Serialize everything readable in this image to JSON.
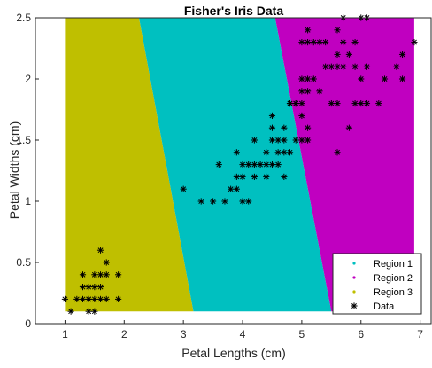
{
  "chart_data": {
    "type": "scatter",
    "title": "Fisher's Iris Data",
    "xlabel": "Petal Lengths (cm)",
    "ylabel": "Petal Widths (cm)",
    "xlim": [
      0.5,
      7.2
    ],
    "ylim": [
      0,
      2.5
    ],
    "xticks": [
      1,
      2,
      3,
      4,
      5,
      6,
      7
    ],
    "xtick_labels": [
      "1",
      "2",
      "3",
      "4",
      "5",
      "6",
      "7"
    ],
    "yticks": [
      0,
      0.5,
      1,
      1.5,
      2,
      2.5
    ],
    "ytick_labels": [
      "0",
      "0.5",
      "1",
      "1.5",
      "2",
      "2.5"
    ],
    "grid": false,
    "legend_position": "bottom-right",
    "legend": [
      {
        "label": "Region 1",
        "color": "#00c0c0",
        "marker": "dot"
      },
      {
        "label": "Region 2",
        "color": "#c000c0",
        "marker": "dot"
      },
      {
        "label": "Region 3",
        "color": "#bfbf00",
        "marker": "dot"
      },
      {
        "label": "Data",
        "color": "#000000",
        "marker": "asterisk"
      }
    ],
    "regions": [
      {
        "name": "Region 3",
        "color": "#bfbf00",
        "polygon": [
          [
            1,
            0.1
          ],
          [
            1,
            2.5
          ],
          [
            2.25,
            2.5
          ],
          [
            3.17,
            0.1
          ]
        ]
      },
      {
        "name": "Region 1",
        "color": "#00c0c0",
        "polygon": [
          [
            2.25,
            2.5
          ],
          [
            4.55,
            2.5
          ],
          [
            5.5,
            0.1
          ],
          [
            3.17,
            0.1
          ]
        ]
      },
      {
        "name": "Region 2",
        "color": "#c000c0",
        "polygon": [
          [
            4.55,
            2.5
          ],
          [
            6.9,
            2.5
          ],
          [
            6.9,
            0.1
          ],
          [
            5.5,
            0.1
          ]
        ]
      }
    ],
    "series": [
      {
        "name": "Data",
        "points": [
          [
            1.0,
            0.2
          ],
          [
            1.1,
            0.1
          ],
          [
            1.2,
            0.2
          ],
          [
            1.3,
            0.2
          ],
          [
            1.3,
            0.3
          ],
          [
            1.3,
            0.4
          ],
          [
            1.4,
            0.2
          ],
          [
            1.4,
            0.3
          ],
          [
            1.4,
            0.1
          ],
          [
            1.5,
            0.2
          ],
          [
            1.5,
            0.1
          ],
          [
            1.5,
            0.4
          ],
          [
            1.4,
            0.2
          ],
          [
            1.5,
            0.3
          ],
          [
            1.6,
            0.2
          ],
          [
            1.6,
            0.4
          ],
          [
            1.6,
            0.6
          ],
          [
            1.7,
            0.2
          ],
          [
            1.7,
            0.4
          ],
          [
            1.7,
            0.5
          ],
          [
            1.9,
            0.2
          ],
          [
            1.9,
            0.4
          ],
          [
            1.6,
            0.3
          ],
          [
            3.0,
            1.1
          ],
          [
            3.3,
            1.0
          ],
          [
            3.5,
            1.0
          ],
          [
            3.6,
            1.3
          ],
          [
            3.7,
            1.0
          ],
          [
            3.8,
            1.1
          ],
          [
            3.9,
            1.1
          ],
          [
            3.9,
            1.2
          ],
          [
            3.9,
            1.4
          ],
          [
            4.0,
            1.0
          ],
          [
            4.0,
            1.2
          ],
          [
            4.0,
            1.3
          ],
          [
            4.1,
            1.0
          ],
          [
            4.1,
            1.3
          ],
          [
            4.2,
            1.2
          ],
          [
            4.2,
            1.3
          ],
          [
            4.2,
            1.5
          ],
          [
            4.3,
            1.3
          ],
          [
            4.4,
            1.2
          ],
          [
            4.4,
            1.3
          ],
          [
            4.4,
            1.4
          ],
          [
            4.5,
            1.3
          ],
          [
            4.5,
            1.5
          ],
          [
            4.6,
            1.3
          ],
          [
            4.6,
            1.4
          ],
          [
            4.7,
            1.2
          ],
          [
            4.7,
            1.4
          ],
          [
            4.5,
            1.6
          ],
          [
            4.5,
            1.7
          ],
          [
            4.6,
            1.5
          ],
          [
            4.7,
            1.5
          ],
          [
            4.7,
            1.6
          ],
          [
            4.8,
            1.4
          ],
          [
            4.8,
            1.8
          ],
          [
            4.9,
            1.5
          ],
          [
            4.9,
            1.8
          ],
          [
            5.0,
            1.5
          ],
          [
            5.0,
            1.7
          ],
          [
            5.1,
            1.5
          ],
          [
            5.1,
            1.6
          ],
          [
            4.8,
            1.8
          ],
          [
            4.9,
            1.8
          ],
          [
            5.0,
            1.8
          ],
          [
            5.0,
            1.9
          ],
          [
            5.0,
            2.0
          ],
          [
            5.1,
            1.9
          ],
          [
            5.1,
            2.0
          ],
          [
            5.1,
            2.3
          ],
          [
            5.1,
            2.4
          ],
          [
            5.0,
            2.3
          ],
          [
            5.2,
            2.3
          ],
          [
            5.3,
            2.3
          ],
          [
            5.2,
            2.0
          ],
          [
            5.3,
            1.9
          ],
          [
            5.4,
            2.1
          ],
          [
            5.4,
            2.3
          ],
          [
            5.5,
            1.8
          ],
          [
            5.5,
            2.1
          ],
          [
            5.6,
            1.4
          ],
          [
            5.6,
            1.8
          ],
          [
            5.6,
            2.1
          ],
          [
            5.6,
            2.2
          ],
          [
            5.6,
            2.4
          ],
          [
            5.7,
            2.1
          ],
          [
            5.7,
            2.3
          ],
          [
            5.7,
            2.5
          ],
          [
            5.8,
            1.6
          ],
          [
            5.8,
            2.2
          ],
          [
            5.9,
            1.8
          ],
          [
            5.9,
            2.1
          ],
          [
            5.9,
            2.3
          ],
          [
            6.0,
            1.8
          ],
          [
            6.0,
            2.0
          ],
          [
            6.0,
            2.5
          ],
          [
            6.1,
            1.8
          ],
          [
            6.1,
            2.1
          ],
          [
            6.1,
            2.5
          ],
          [
            6.3,
            1.8
          ],
          [
            6.4,
            2.0
          ],
          [
            6.6,
            2.1
          ],
          [
            6.7,
            2.0
          ],
          [
            6.7,
            2.2
          ],
          [
            6.9,
            2.3
          ]
        ]
      }
    ]
  }
}
